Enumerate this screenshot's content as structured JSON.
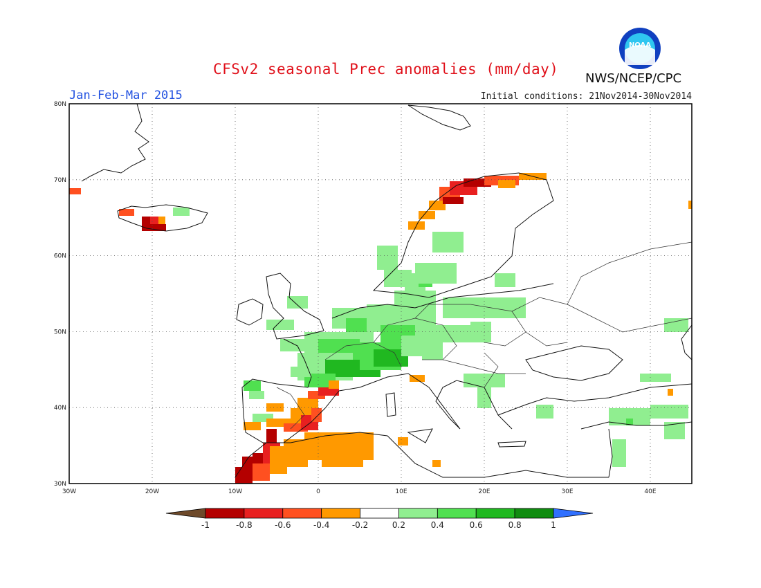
{
  "header": {
    "title": "CFSv2 seasonal Prec anomalies (mm/day)",
    "period": "Jan-Feb-Mar 2015",
    "initial_conditions": "Initial conditions: 21Nov2014-30Nov2014",
    "agency": "NWS/NCEP/CPC",
    "logo_text": "NOAA"
  },
  "map": {
    "region": "Europe",
    "lon_range": [
      -30,
      45
    ],
    "lat_range": [
      30,
      80
    ],
    "lon_ticks": [
      "30W",
      "20W",
      "10W",
      "0",
      "10E",
      "20E",
      "30E",
      "40E"
    ],
    "lat_ticks": [
      "80N",
      "70N",
      "60N",
      "50N",
      "40N",
      "30N"
    ],
    "grid": "dotted"
  },
  "colorbar": {
    "ticks": [
      "-1",
      "-0.8",
      "-0.6",
      "-0.4",
      "-0.2",
      "0.2",
      "0.4",
      "0.6",
      "0.8",
      "1"
    ],
    "colors": [
      "#6e4a2a",
      "#b40000",
      "#e82020",
      "#ff5020",
      "#ff9900",
      "#ffffff",
      "#90ee90",
      "#50e050",
      "#20b820",
      "#108c10",
      "#3070ff"
    ]
  }
}
